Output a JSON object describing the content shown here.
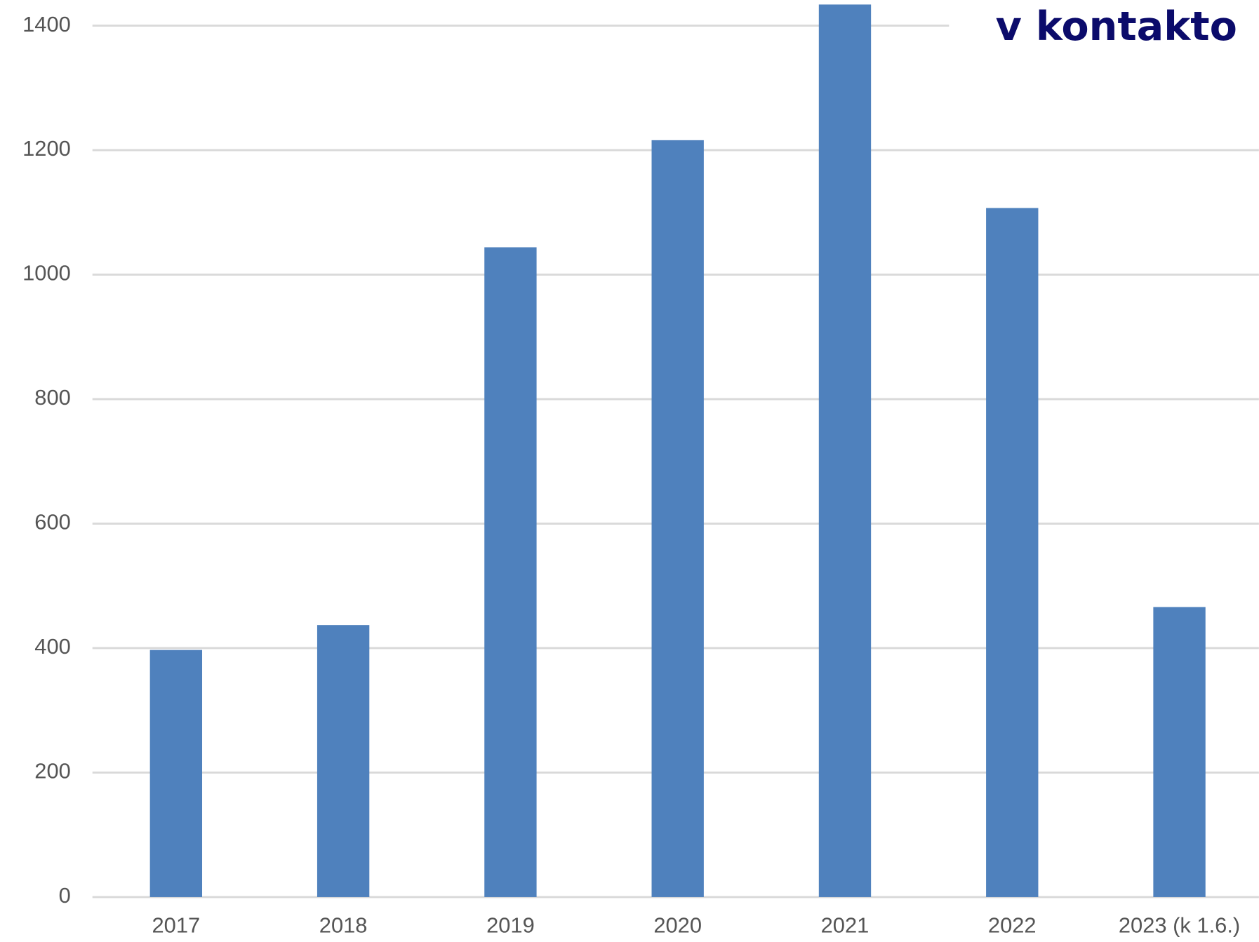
{
  "chart_data": {
    "type": "bar",
    "title": "v kontakto",
    "categories": [
      "2017",
      "2018",
      "2019",
      "2020",
      "2021",
      "2022",
      "2023 (k 1.6.)"
    ],
    "values": [
      397,
      437,
      1044,
      1216,
      1434,
      1107,
      466
    ],
    "color": "#4f81bd",
    "ylim": [
      0,
      1400
    ],
    "yticks": [
      0,
      200,
      400,
      600,
      800,
      1000,
      1200,
      1400
    ],
    "grid": true
  }
}
